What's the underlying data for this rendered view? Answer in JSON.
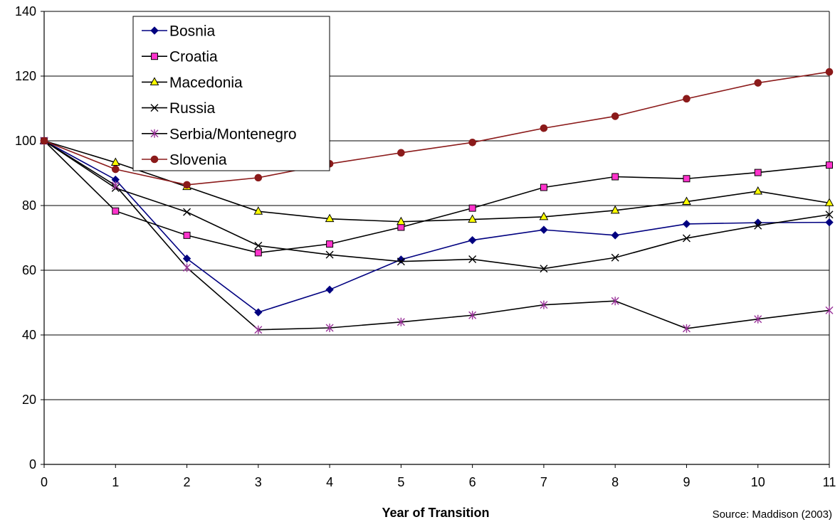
{
  "chart_data": {
    "type": "line",
    "title": "",
    "xlabel": "Year of Transition",
    "ylabel": "",
    "source_note": "Source: Maddison (2003)",
    "x": [
      0,
      1,
      2,
      3,
      4,
      5,
      6,
      7,
      8,
      9,
      10,
      11
    ],
    "xlim": [
      0,
      11
    ],
    "ylim": [
      0,
      140
    ],
    "yticks": [
      0,
      20,
      40,
      60,
      80,
      100,
      120,
      140
    ],
    "grid": "horizontal",
    "legend_position": "top-left",
    "series": [
      {
        "name": "Bosnia",
        "color": "#000080",
        "marker": "diamond",
        "values": [
          100,
          88,
          63.6,
          47,
          54,
          63.3,
          69.3,
          72.5,
          70.8,
          74.3,
          74.7,
          74.8
        ]
      },
      {
        "name": "Croatia",
        "color": "#000000",
        "marker": "square",
        "marker_fill": "#ff33cc",
        "values": [
          100,
          78.3,
          70.8,
          65.4,
          68.1,
          73.3,
          79.2,
          85.6,
          88.9,
          88.3,
          90.2,
          92.5
        ]
      },
      {
        "name": "Macedonia",
        "color": "#000000",
        "marker": "triangle",
        "marker_fill": "#ffff00",
        "values": [
          100,
          93.3,
          85.8,
          78.2,
          75.9,
          75,
          75.7,
          76.5,
          78.5,
          81.2,
          84.4,
          80.8
        ]
      },
      {
        "name": "Russia",
        "color": "#000000",
        "marker": "x",
        "values": [
          100,
          85.4,
          78,
          67.6,
          64.8,
          62.7,
          63.4,
          60.5,
          63.9,
          69.9,
          73.8,
          77.2
        ]
      },
      {
        "name": "Serbia/Montenegro",
        "color": "#000000",
        "marker": "star",
        "marker_color": "#993399",
        "values": [
          100,
          86.2,
          60.8,
          41.6,
          42.2,
          44,
          46.1,
          49.3,
          50.5,
          42,
          44.9,
          47.6
        ]
      },
      {
        "name": "Slovenia",
        "color": "#8b1a1a",
        "marker": "circle",
        "values": [
          100,
          91.2,
          86.4,
          88.6,
          92.9,
          96.3,
          99.5,
          103.9,
          107.6,
          113,
          117.9,
          121.3
        ]
      }
    ]
  }
}
